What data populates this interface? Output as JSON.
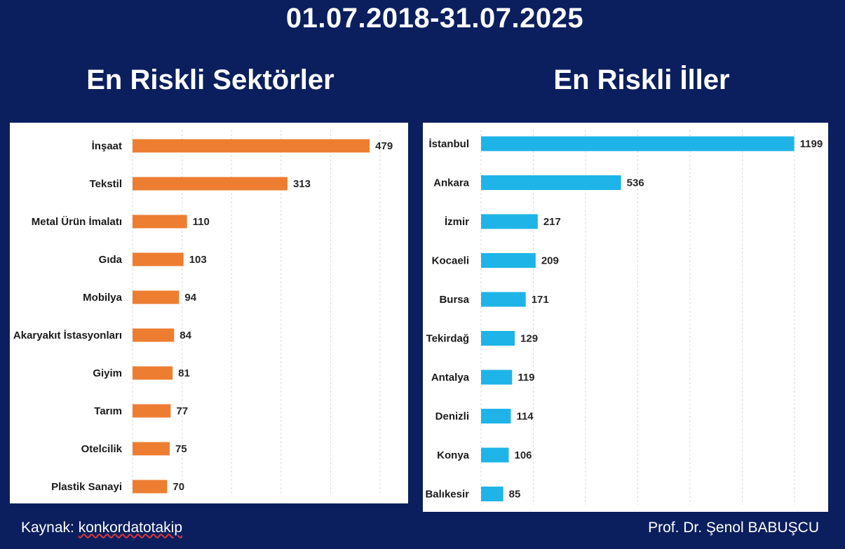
{
  "header": {
    "date_range": "01.07.2018-31.07.2025"
  },
  "footer": {
    "source_label": "Kaynak:",
    "source_name": "konkordatotakip",
    "author": "Prof. Dr. Şenol BABUŞCU"
  },
  "colors": {
    "background": "#0b1f5e",
    "sector_bar": "#ed7d31",
    "city_bar": "#1eb4e8"
  },
  "chart_data": [
    {
      "type": "bar",
      "orientation": "horizontal",
      "title": "En Riskli Sektörler",
      "categories": [
        "İnşaat",
        "Tekstil",
        "Metal Ürün İmalatı",
        "Gıda",
        "Mobilya",
        "Akaryakıt İstasyonları",
        "Giyim",
        "Tarım",
        "Otelcilik",
        "Plastik Sanayi"
      ],
      "values": [
        479,
        313,
        110,
        103,
        94,
        84,
        81,
        77,
        75,
        70
      ],
      "xlim": [
        0,
        500
      ],
      "grid": true,
      "data_labels": true
    },
    {
      "type": "bar",
      "orientation": "horizontal",
      "title": "En Riskli İller",
      "categories": [
        "İstanbul",
        "Ankara",
        "İzmir",
        "Kocaeli",
        "Bursa",
        "Tekirdağ",
        "Antalya",
        "Denizli",
        "Konya",
        "Balıkesir"
      ],
      "values": [
        1199,
        536,
        217,
        209,
        171,
        129,
        119,
        114,
        106,
        85
      ],
      "xlim": [
        0,
        1200
      ],
      "grid": true,
      "data_labels": true
    }
  ]
}
